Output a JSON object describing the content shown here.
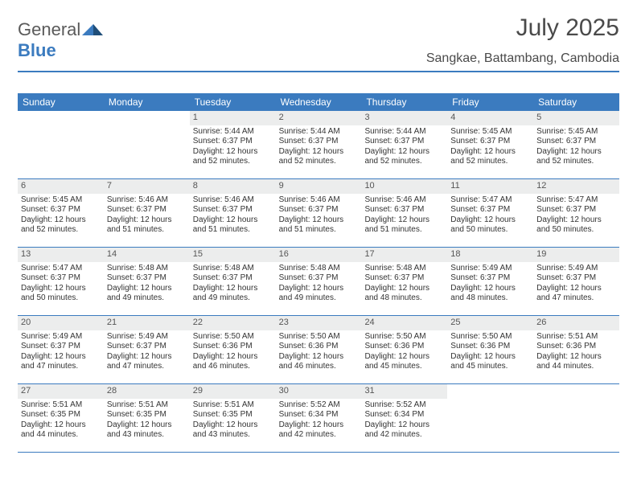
{
  "brand": {
    "part1": "General",
    "part2": "Blue"
  },
  "title": "July 2025",
  "location": "Sangkae, Battambang, Cambodia",
  "colors": {
    "header_bg": "#3b7bbf",
    "header_text": "#ffffff",
    "daynum_bg": "#eceded",
    "border": "#3b7bbf",
    "title_color": "#4a4a4a"
  },
  "weekdays": [
    "Sunday",
    "Monday",
    "Tuesday",
    "Wednesday",
    "Thursday",
    "Friday",
    "Saturday"
  ],
  "weeks": [
    [
      {
        "n": "",
        "sr": "",
        "ss": "",
        "dl": ""
      },
      {
        "n": "",
        "sr": "",
        "ss": "",
        "dl": ""
      },
      {
        "n": "1",
        "sr": "Sunrise: 5:44 AM",
        "ss": "Sunset: 6:37 PM",
        "dl": "Daylight: 12 hours and 52 minutes."
      },
      {
        "n": "2",
        "sr": "Sunrise: 5:44 AM",
        "ss": "Sunset: 6:37 PM",
        "dl": "Daylight: 12 hours and 52 minutes."
      },
      {
        "n": "3",
        "sr": "Sunrise: 5:44 AM",
        "ss": "Sunset: 6:37 PM",
        "dl": "Daylight: 12 hours and 52 minutes."
      },
      {
        "n": "4",
        "sr": "Sunrise: 5:45 AM",
        "ss": "Sunset: 6:37 PM",
        "dl": "Daylight: 12 hours and 52 minutes."
      },
      {
        "n": "5",
        "sr": "Sunrise: 5:45 AM",
        "ss": "Sunset: 6:37 PM",
        "dl": "Daylight: 12 hours and 52 minutes."
      }
    ],
    [
      {
        "n": "6",
        "sr": "Sunrise: 5:45 AM",
        "ss": "Sunset: 6:37 PM",
        "dl": "Daylight: 12 hours and 52 minutes."
      },
      {
        "n": "7",
        "sr": "Sunrise: 5:46 AM",
        "ss": "Sunset: 6:37 PM",
        "dl": "Daylight: 12 hours and 51 minutes."
      },
      {
        "n": "8",
        "sr": "Sunrise: 5:46 AM",
        "ss": "Sunset: 6:37 PM",
        "dl": "Daylight: 12 hours and 51 minutes."
      },
      {
        "n": "9",
        "sr": "Sunrise: 5:46 AM",
        "ss": "Sunset: 6:37 PM",
        "dl": "Daylight: 12 hours and 51 minutes."
      },
      {
        "n": "10",
        "sr": "Sunrise: 5:46 AM",
        "ss": "Sunset: 6:37 PM",
        "dl": "Daylight: 12 hours and 51 minutes."
      },
      {
        "n": "11",
        "sr": "Sunrise: 5:47 AM",
        "ss": "Sunset: 6:37 PM",
        "dl": "Daylight: 12 hours and 50 minutes."
      },
      {
        "n": "12",
        "sr": "Sunrise: 5:47 AM",
        "ss": "Sunset: 6:37 PM",
        "dl": "Daylight: 12 hours and 50 minutes."
      }
    ],
    [
      {
        "n": "13",
        "sr": "Sunrise: 5:47 AM",
        "ss": "Sunset: 6:37 PM",
        "dl": "Daylight: 12 hours and 50 minutes."
      },
      {
        "n": "14",
        "sr": "Sunrise: 5:48 AM",
        "ss": "Sunset: 6:37 PM",
        "dl": "Daylight: 12 hours and 49 minutes."
      },
      {
        "n": "15",
        "sr": "Sunrise: 5:48 AM",
        "ss": "Sunset: 6:37 PM",
        "dl": "Daylight: 12 hours and 49 minutes."
      },
      {
        "n": "16",
        "sr": "Sunrise: 5:48 AM",
        "ss": "Sunset: 6:37 PM",
        "dl": "Daylight: 12 hours and 49 minutes."
      },
      {
        "n": "17",
        "sr": "Sunrise: 5:48 AM",
        "ss": "Sunset: 6:37 PM",
        "dl": "Daylight: 12 hours and 48 minutes."
      },
      {
        "n": "18",
        "sr": "Sunrise: 5:49 AM",
        "ss": "Sunset: 6:37 PM",
        "dl": "Daylight: 12 hours and 48 minutes."
      },
      {
        "n": "19",
        "sr": "Sunrise: 5:49 AM",
        "ss": "Sunset: 6:37 PM",
        "dl": "Daylight: 12 hours and 47 minutes."
      }
    ],
    [
      {
        "n": "20",
        "sr": "Sunrise: 5:49 AM",
        "ss": "Sunset: 6:37 PM",
        "dl": "Daylight: 12 hours and 47 minutes."
      },
      {
        "n": "21",
        "sr": "Sunrise: 5:49 AM",
        "ss": "Sunset: 6:37 PM",
        "dl": "Daylight: 12 hours and 47 minutes."
      },
      {
        "n": "22",
        "sr": "Sunrise: 5:50 AM",
        "ss": "Sunset: 6:36 PM",
        "dl": "Daylight: 12 hours and 46 minutes."
      },
      {
        "n": "23",
        "sr": "Sunrise: 5:50 AM",
        "ss": "Sunset: 6:36 PM",
        "dl": "Daylight: 12 hours and 46 minutes."
      },
      {
        "n": "24",
        "sr": "Sunrise: 5:50 AM",
        "ss": "Sunset: 6:36 PM",
        "dl": "Daylight: 12 hours and 45 minutes."
      },
      {
        "n": "25",
        "sr": "Sunrise: 5:50 AM",
        "ss": "Sunset: 6:36 PM",
        "dl": "Daylight: 12 hours and 45 minutes."
      },
      {
        "n": "26",
        "sr": "Sunrise: 5:51 AM",
        "ss": "Sunset: 6:36 PM",
        "dl": "Daylight: 12 hours and 44 minutes."
      }
    ],
    [
      {
        "n": "27",
        "sr": "Sunrise: 5:51 AM",
        "ss": "Sunset: 6:35 PM",
        "dl": "Daylight: 12 hours and 44 minutes."
      },
      {
        "n": "28",
        "sr": "Sunrise: 5:51 AM",
        "ss": "Sunset: 6:35 PM",
        "dl": "Daylight: 12 hours and 43 minutes."
      },
      {
        "n": "29",
        "sr": "Sunrise: 5:51 AM",
        "ss": "Sunset: 6:35 PM",
        "dl": "Daylight: 12 hours and 43 minutes."
      },
      {
        "n": "30",
        "sr": "Sunrise: 5:52 AM",
        "ss": "Sunset: 6:34 PM",
        "dl": "Daylight: 12 hours and 42 minutes."
      },
      {
        "n": "31",
        "sr": "Sunrise: 5:52 AM",
        "ss": "Sunset: 6:34 PM",
        "dl": "Daylight: 12 hours and 42 minutes."
      },
      {
        "n": "",
        "sr": "",
        "ss": "",
        "dl": ""
      },
      {
        "n": "",
        "sr": "",
        "ss": "",
        "dl": ""
      }
    ]
  ]
}
